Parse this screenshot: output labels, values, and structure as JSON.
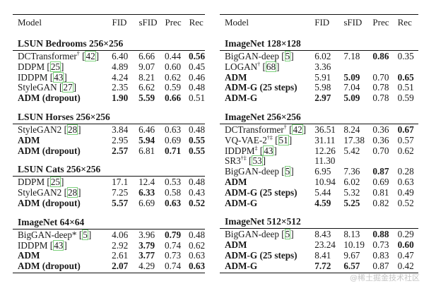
{
  "columns": [
    "Model",
    "FID",
    "sFID",
    "Prec",
    "Rec"
  ],
  "left_table": {
    "groups": [
      {
        "title": "LSUN Bedrooms 256×256",
        "rows": [
          {
            "model": "DCTransformer",
            "sup": "†",
            "cite": "42",
            "fid": "6.40",
            "sfid": "6.66",
            "prec": "0.44",
            "rec": "0.56",
            "bold": [
              "rec"
            ]
          },
          {
            "model": "DDPM",
            "sup": "",
            "cite": "25",
            "fid": "4.89",
            "sfid": "9.07",
            "prec": "0.60",
            "rec": "0.45",
            "bold": []
          },
          {
            "model": "IDDPM",
            "sup": "",
            "cite": "43",
            "fid": "4.24",
            "sfid": "8.21",
            "prec": "0.62",
            "rec": "0.46",
            "bold": []
          },
          {
            "model": "StyleGAN",
            "sup": "",
            "cite": "27",
            "fid": "2.35",
            "sfid": "6.62",
            "prec": "0.59",
            "rec": "0.48",
            "bold": []
          },
          {
            "model": "ADM (dropout)",
            "sup": "",
            "cite": "",
            "fid": "1.90",
            "sfid": "5.59",
            "prec": "0.66",
            "rec": "0.51",
            "bold": [
              "model",
              "fid",
              "sfid",
              "prec"
            ]
          }
        ]
      },
      {
        "title": "LSUN Horses 256×256",
        "rows": [
          {
            "model": "StyleGAN2",
            "sup": "",
            "cite": "28",
            "fid": "3.84",
            "sfid": "6.46",
            "prec": "0.63",
            "rec": "0.48",
            "bold": []
          },
          {
            "model": "ADM",
            "sup": "",
            "cite": "",
            "fid": "2.95",
            "sfid": "5.94",
            "prec": "0.69",
            "rec": "0.55",
            "bold": [
              "model",
              "sfid",
              "rec"
            ]
          },
          {
            "model": "ADM (dropout)",
            "sup": "",
            "cite": "",
            "fid": "2.57",
            "sfid": "6.81",
            "prec": "0.71",
            "rec": "0.55",
            "bold": [
              "model",
              "fid",
              "prec",
              "rec"
            ]
          }
        ]
      },
      {
        "title": "LSUN Cats 256×256",
        "rows": [
          {
            "model": "DDPM",
            "sup": "",
            "cite": "25",
            "fid": "17.1",
            "sfid": "12.4",
            "prec": "0.53",
            "rec": "0.48",
            "bold": []
          },
          {
            "model": "StyleGAN2",
            "sup": "",
            "cite": "28",
            "fid": "7.25",
            "sfid": "6.33",
            "prec": "0.58",
            "rec": "0.43",
            "bold": [
              "sfid"
            ]
          },
          {
            "model": "ADM (dropout)",
            "sup": "",
            "cite": "",
            "fid": "5.57",
            "sfid": "6.69",
            "prec": "0.63",
            "rec": "0.52",
            "bold": [
              "model",
              "fid",
              "prec",
              "rec"
            ]
          }
        ]
      },
      {
        "title": "ImageNet 64×64",
        "rows": [
          {
            "model": "BigGAN-deep*",
            "sup": "",
            "cite": "5",
            "fid": "4.06",
            "sfid": "3.96",
            "prec": "0.79",
            "rec": "0.48",
            "bold": [
              "prec"
            ]
          },
          {
            "model": "IDDPM",
            "sup": "",
            "cite": "43",
            "fid": "2.92",
            "sfid": "3.79",
            "prec": "0.74",
            "rec": "0.62",
            "bold": [
              "sfid"
            ]
          },
          {
            "model": "ADM",
            "sup": "",
            "cite": "",
            "fid": "2.61",
            "sfid": "3.77",
            "prec": "0.73",
            "rec": "0.63",
            "bold": [
              "model",
              "sfid"
            ]
          },
          {
            "model": "ADM (dropout)",
            "sup": "",
            "cite": "",
            "fid": "2.07",
            "sfid": "4.29",
            "prec": "0.74",
            "rec": "0.63",
            "bold": [
              "model",
              "fid",
              "rec"
            ]
          }
        ]
      }
    ]
  },
  "right_table": {
    "groups": [
      {
        "title": "ImageNet 128×128",
        "rows": [
          {
            "model": "BigGAN-deep",
            "sup": "",
            "cite": "5",
            "fid": "6.02",
            "sfid": "7.18",
            "prec": "0.86",
            "rec": "0.35",
            "bold": [
              "prec"
            ]
          },
          {
            "model": "LOGAN",
            "sup": "†",
            "cite": "68",
            "fid": "3.36",
            "sfid": "",
            "prec": "",
            "rec": "",
            "bold": []
          },
          {
            "model": "ADM",
            "sup": "",
            "cite": "",
            "fid": "5.91",
            "sfid": "5.09",
            "prec": "0.70",
            "rec": "0.65",
            "bold": [
              "model",
              "sfid",
              "rec"
            ]
          },
          {
            "model": "ADM-G (25 steps)",
            "sup": "",
            "cite": "",
            "fid": "5.98",
            "sfid": "7.04",
            "prec": "0.78",
            "rec": "0.51",
            "bold": [
              "model"
            ]
          },
          {
            "model": "ADM-G",
            "sup": "",
            "cite": "",
            "fid": "2.97",
            "sfid": "5.09",
            "prec": "0.78",
            "rec": "0.59",
            "bold": [
              "model",
              "fid",
              "sfid"
            ]
          }
        ]
      },
      {
        "title": "ImageNet 256×256",
        "rows": [
          {
            "model": "DCTransformer",
            "sup": "†",
            "cite": "42",
            "fid": "36.51",
            "sfid": "8.24",
            "prec": "0.36",
            "rec": "0.67",
            "bold": [
              "rec"
            ]
          },
          {
            "model": "VQ-VAE-2",
            "sup": "†‡",
            "cite": "51",
            "fid": "31.11",
            "sfid": "17.38",
            "prec": "0.36",
            "rec": "0.57",
            "bold": []
          },
          {
            "model": "IDDPM",
            "sup": "‡",
            "cite": "43",
            "fid": "12.26",
            "sfid": "5.42",
            "prec": "0.70",
            "rec": "0.62",
            "bold": []
          },
          {
            "model": "SR3",
            "sup": "†‡",
            "cite": "53",
            "fid": "11.30",
            "sfid": "",
            "prec": "",
            "rec": "",
            "bold": []
          },
          {
            "model": "BigGAN-deep",
            "sup": "",
            "cite": "5",
            "fid": "6.95",
            "sfid": "7.36",
            "prec": "0.87",
            "rec": "0.28",
            "bold": [
              "prec"
            ]
          },
          {
            "model": "ADM",
            "sup": "",
            "cite": "",
            "fid": "10.94",
            "sfid": "6.02",
            "prec": "0.69",
            "rec": "0.63",
            "bold": [
              "model"
            ]
          },
          {
            "model": "ADM-G (25 steps)",
            "sup": "",
            "cite": "",
            "fid": "5.44",
            "sfid": "5.32",
            "prec": "0.81",
            "rec": "0.49",
            "bold": [
              "model"
            ]
          },
          {
            "model": "ADM-G",
            "sup": "",
            "cite": "",
            "fid": "4.59",
            "sfid": "5.25",
            "prec": "0.82",
            "rec": "0.52",
            "bold": [
              "model",
              "fid",
              "sfid"
            ]
          }
        ]
      },
      {
        "title": "ImageNet 512×512",
        "rows": [
          {
            "model": "BigGAN-deep",
            "sup": "",
            "cite": "5",
            "fid": "8.43",
            "sfid": "8.13",
            "prec": "0.88",
            "rec": "0.29",
            "bold": [
              "prec"
            ]
          },
          {
            "model": "ADM",
            "sup": "",
            "cite": "",
            "fid": "23.24",
            "sfid": "10.19",
            "prec": "0.73",
            "rec": "0.60",
            "bold": [
              "model",
              "rec"
            ]
          },
          {
            "model": "ADM-G (25 steps)",
            "sup": "",
            "cite": "",
            "fid": "8.41",
            "sfid": "9.67",
            "prec": "0.83",
            "rec": "0.47",
            "bold": [
              "model"
            ]
          },
          {
            "model": "ADM-G",
            "sup": "",
            "cite": "",
            "fid": "7.72",
            "sfid": "6.57",
            "prec": "0.87",
            "rec": "0.42",
            "bold": [
              "model",
              "fid",
              "sfid"
            ]
          }
        ]
      }
    ]
  },
  "watermark": "@稀土掘金技术社区"
}
